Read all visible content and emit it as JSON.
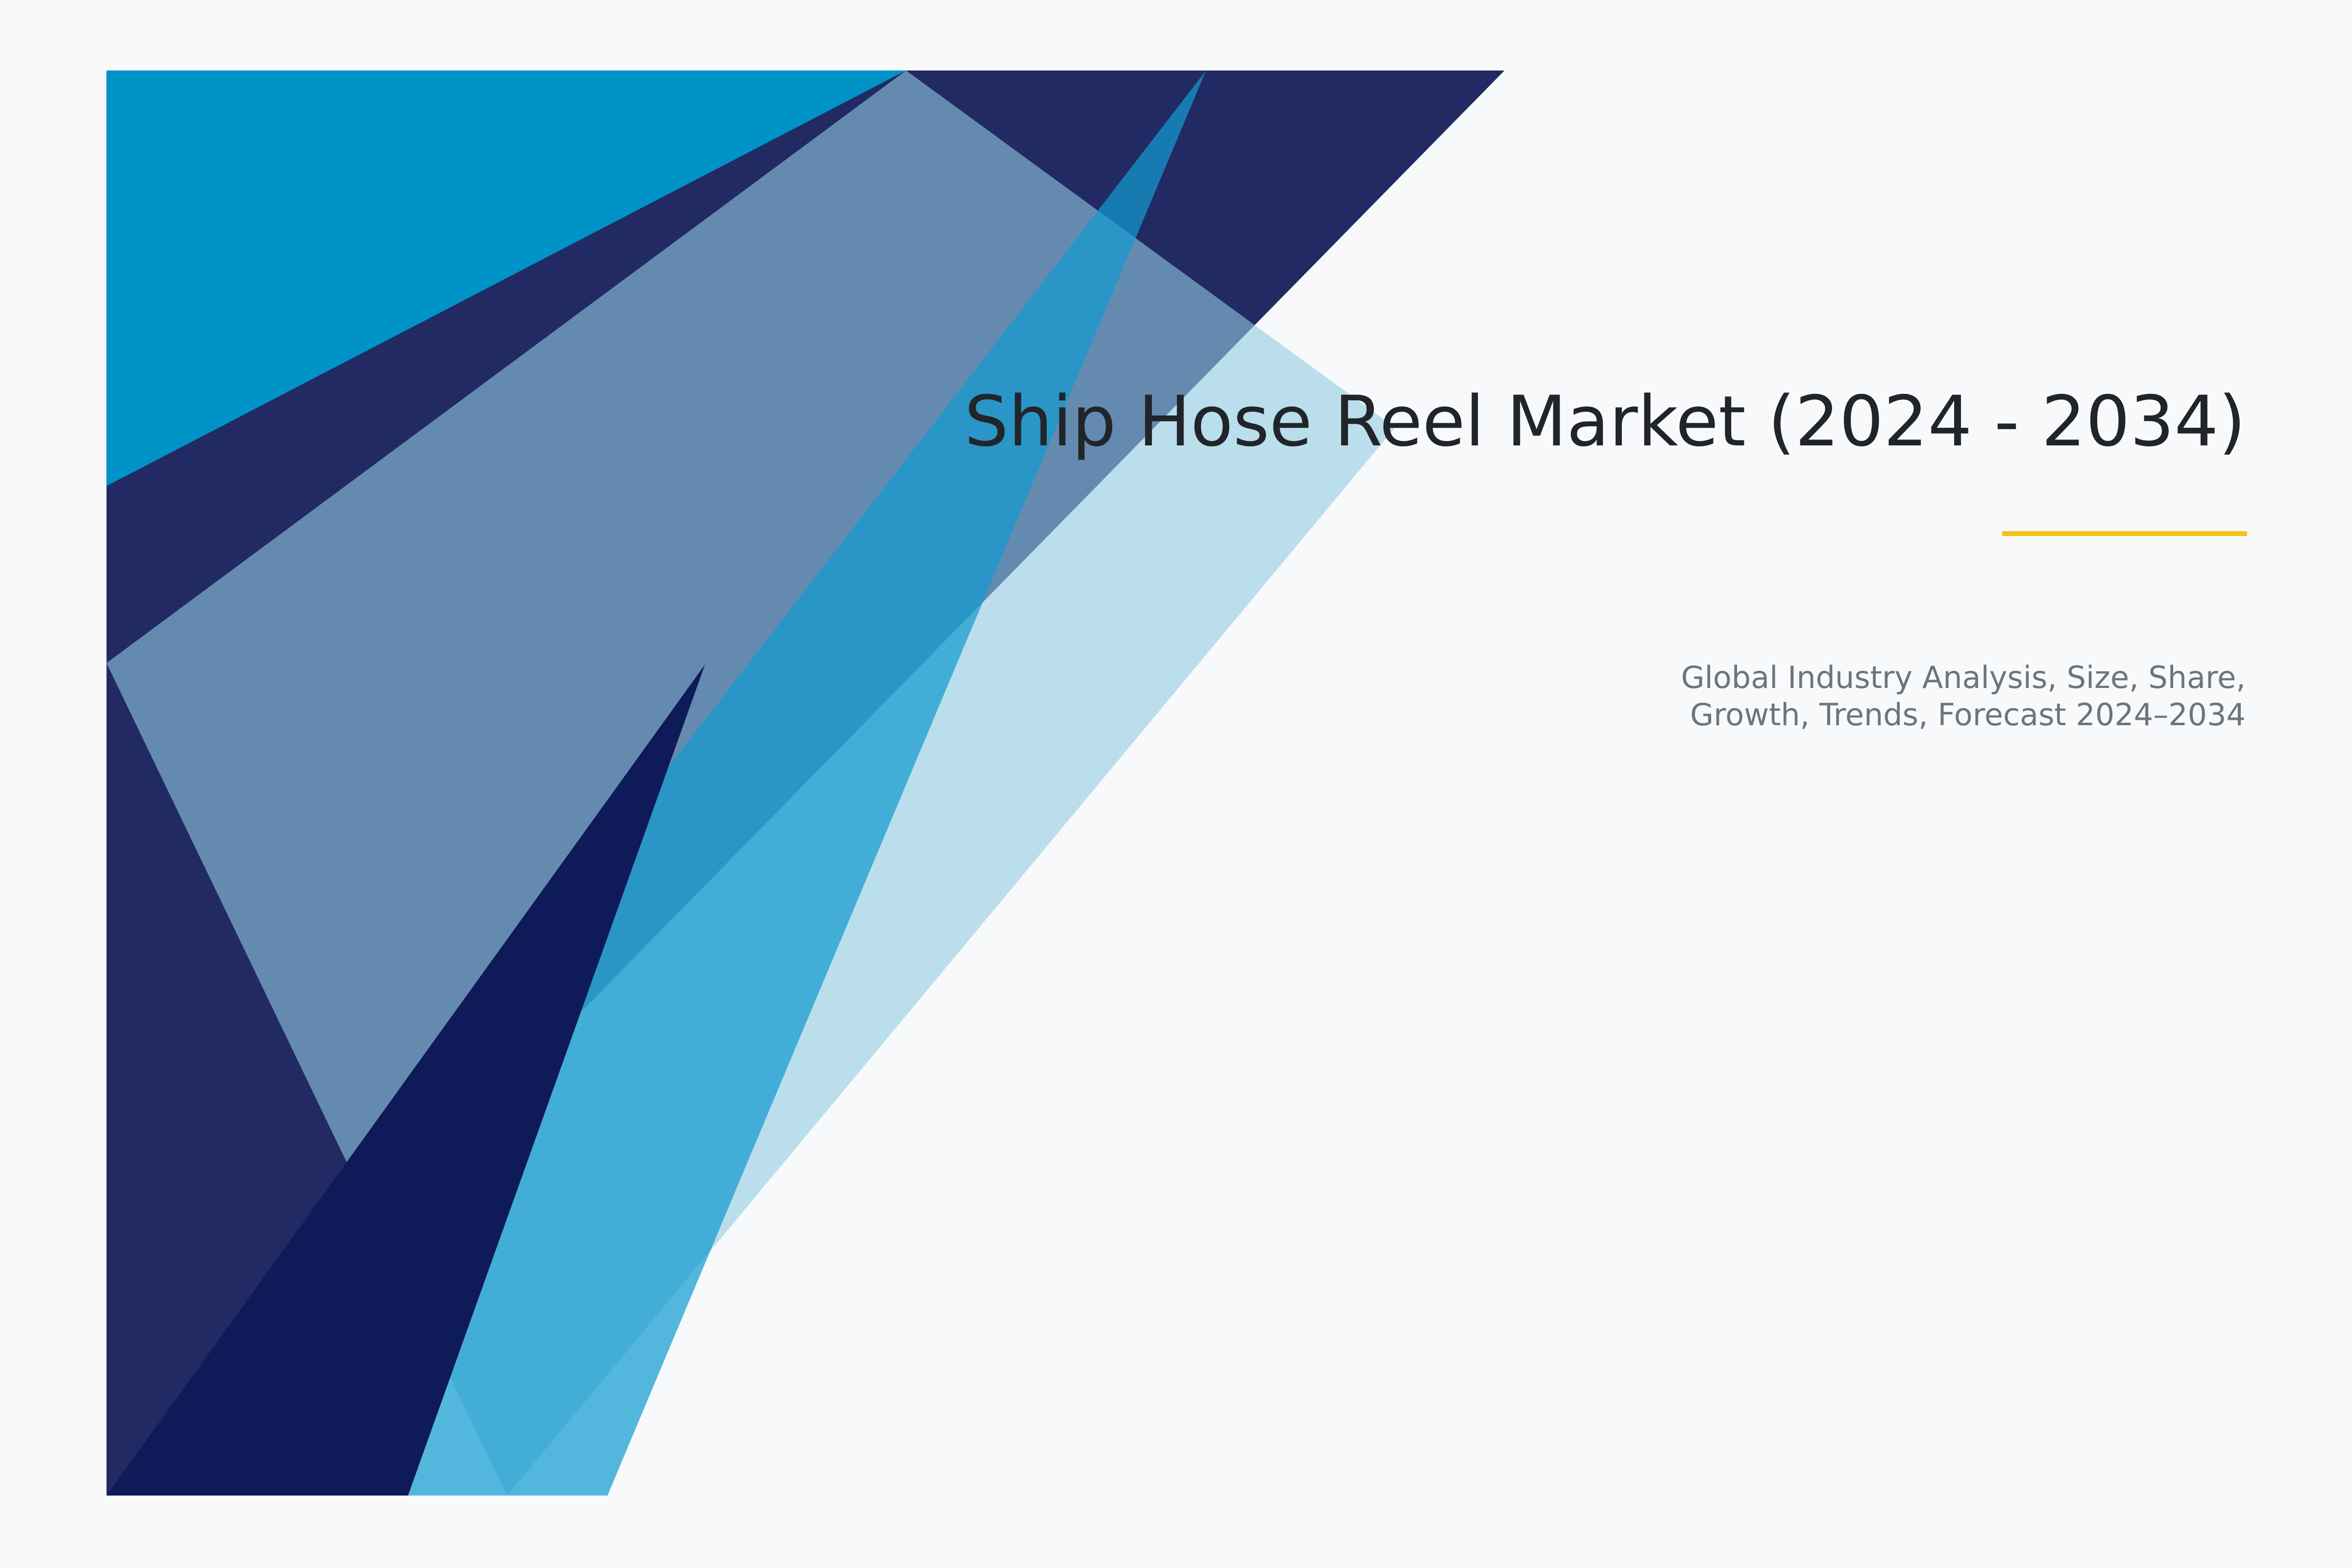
{
  "title": "Ship Hose Reel Market (2024 - 2034)",
  "subtitle": {
    "line1": "Global Industry Analysis, Size, Share,",
    "line2": "Growth, Trends, Forecast 2024–2034"
  },
  "colors": {
    "background": "#F8F9FB",
    "navy": "#222A63",
    "cyan": "#0093C8",
    "light_blue_overlay": "rgba(146,204,229,0.6)",
    "mid_blue_overlay": "rgba(20,155,208,0.75)",
    "deep_navy": "#0F1A58",
    "accent": "#F5C118",
    "title_text": "#212529",
    "subtitle_text": "#6C757D"
  }
}
